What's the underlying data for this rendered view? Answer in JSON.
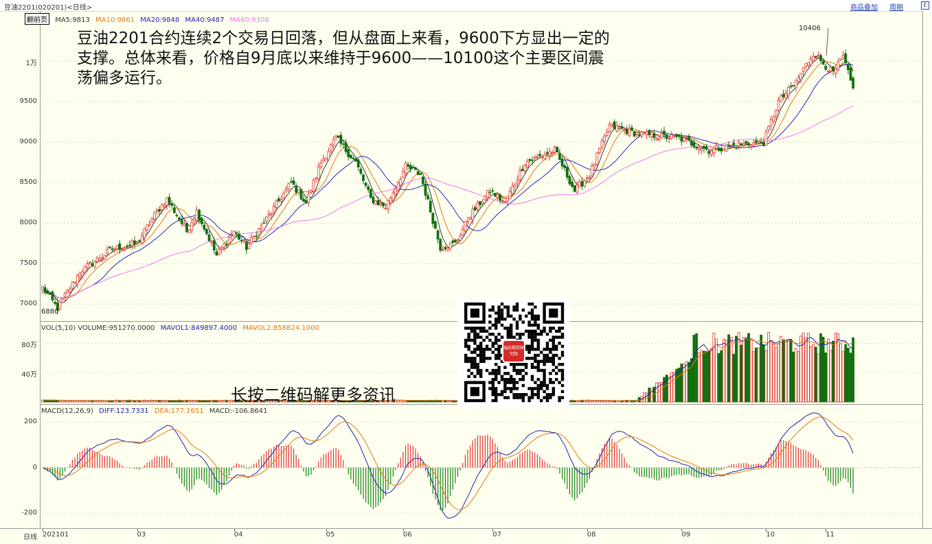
{
  "window": {
    "title": "豆油2201(020201)<日线>",
    "menu": [
      {
        "label": "商品叠加"
      },
      {
        "label": "周期"
      }
    ],
    "square_icon": "E"
  },
  "price_panel": {
    "flip_button": "翻前页",
    "ma_legend": [
      {
        "label": "MA5:9813",
        "color": "#333333"
      },
      {
        "label": "MA10:9861",
        "color": "#e07a10"
      },
      {
        "label": "MA20:9848",
        "color": "#2222cc"
      },
      {
        "label": "MA40:9487",
        "color": "#2222aa"
      },
      {
        "label": "MA60:9308",
        "color": "#ee77ee"
      }
    ],
    "y_ticks": [
      {
        "label": "1万",
        "value": 10000
      },
      {
        "label": "9500",
        "value": 9500
      },
      {
        "label": "9000",
        "value": 9000
      },
      {
        "label": "8500",
        "value": 8500
      },
      {
        "label": "8000",
        "value": 8000
      },
      {
        "label": "7500",
        "value": 7500
      },
      {
        "label": "7000",
        "value": 7000
      }
    ],
    "high_label": "10406",
    "low_label": "6880"
  },
  "volume_panel": {
    "legend": [
      {
        "label": "VOL(5,10) VOLUME:951270.0000",
        "color": "#333333"
      },
      {
        "label": "MAVOL1:849897.4000",
        "color": "#2222aa"
      },
      {
        "label": "MAVOL2:858824.1000",
        "color": "#e07a10"
      }
    ],
    "y_ticks": [
      {
        "label": "80万",
        "value": 800000
      },
      {
        "label": "40万",
        "value": 400000
      }
    ]
  },
  "macd_panel": {
    "legend": [
      {
        "label": "MACD(12,26,9)",
        "color": "#333333"
      },
      {
        "label": "DIFF:123.7331",
        "color": "#2222aa"
      },
      {
        "label": "DEA:177.1651",
        "color": "#e07a10"
      },
      {
        "label": "MACD:-106.8641",
        "color": "#333333"
      }
    ],
    "y_ticks": [
      {
        "label": "200",
        "value": 200
      },
      {
        "label": "0",
        "value": 0
      },
      {
        "label": "-200",
        "value": -200
      }
    ]
  },
  "x_axis": {
    "period_label": "日线",
    "months": [
      {
        "label": "202101",
        "i": 0
      },
      {
        "label": "03",
        "i": 38
      },
      {
        "label": "04",
        "i": 77
      },
      {
        "label": "05",
        "i": 114
      },
      {
        "label": "06",
        "i": 145
      },
      {
        "label": "07",
        "i": 181
      },
      {
        "label": "08",
        "i": 219
      },
      {
        "label": "09",
        "i": 257
      },
      {
        "label": "10",
        "i": 291
      },
      {
        "label": "11",
        "i": 315
      }
    ]
  },
  "annotation": "豆油2201合约连续2个交易日回落，但从盘面上来看，9600下方显出一定的支撑。总体来看，价格自9月底以来维持于9600——10100这个主要区间震荡偏多运行。",
  "qr_caption": "长按二维码解更多资讯",
  "qr_logo_text": "瑞达期货研究院",
  "chart_data": {
    "type": "candlestick",
    "keypoints": [
      [
        0,
        7200
      ],
      [
        6,
        6950
      ],
      [
        15,
        7400
      ],
      [
        28,
        7680
      ],
      [
        38,
        7750
      ],
      [
        45,
        8100
      ],
      [
        50,
        8300
      ],
      [
        58,
        7900
      ],
      [
        62,
        8150
      ],
      [
        70,
        7600
      ],
      [
        77,
        7900
      ],
      [
        82,
        7700
      ],
      [
        90,
        8050
      ],
      [
        100,
        8500
      ],
      [
        106,
        8250
      ],
      [
        112,
        8750
      ],
      [
        118,
        9050
      ],
      [
        126,
        8750
      ],
      [
        132,
        8300
      ],
      [
        138,
        8200
      ],
      [
        146,
        8700
      ],
      [
        152,
        8600
      ],
      [
        160,
        7700
      ],
      [
        166,
        7750
      ],
      [
        172,
        8100
      ],
      [
        180,
        8400
      ],
      [
        186,
        8250
      ],
      [
        194,
        8750
      ],
      [
        206,
        8900
      ],
      [
        214,
        8400
      ],
      [
        220,
        8600
      ],
      [
        228,
        9200
      ],
      [
        240,
        9100
      ],
      [
        256,
        9050
      ],
      [
        268,
        8900
      ],
      [
        276,
        8950
      ],
      [
        290,
        9000
      ],
      [
        296,
        9500
      ],
      [
        302,
        9700
      ],
      [
        306,
        9900
      ],
      [
        310,
        10100
      ],
      [
        318,
        9850
      ],
      [
        322,
        10050
      ],
      [
        326,
        9650
      ]
    ],
    "high": 10406,
    "low": 6880,
    "ylim": [
      6850,
      10450
    ],
    "bar_count": 327,
    "ma_colors": {
      "MA5": "#333333",
      "MA10": "#e07a10",
      "MA20": "#2222cc",
      "MA60": "#ee77ee"
    },
    "volume_ylim": [
      0,
      1000000
    ],
    "macd_ylim": [
      -260,
      270
    ],
    "macd_last": {
      "diff": 123.7331,
      "dea": 177.1651,
      "macd": -106.8641
    },
    "up_color": "#e03030",
    "down_color": "#107010"
  }
}
